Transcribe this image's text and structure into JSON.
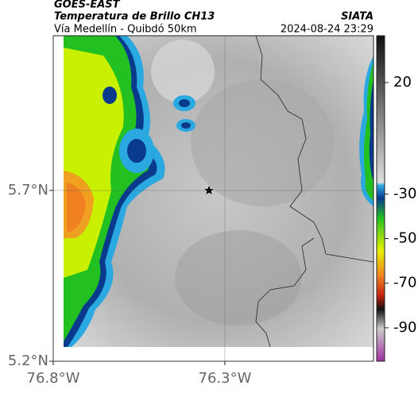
{
  "header": {
    "title": "GOES-EAST",
    "subtitle": "Temperatura de Brillo CH13",
    "route": "Vía Medellín - Quibdó 50km",
    "source": "SIATA",
    "timestamp": "2024-08-24 23:29"
  },
  "map": {
    "xlim": [
      -76.8,
      -75.867
    ],
    "ylim": [
      5.2,
      6.153
    ],
    "xticks": [
      {
        "value": -76.8,
        "label": "76.8°W"
      },
      {
        "value": -76.3,
        "label": "76.3°W"
      }
    ],
    "yticks": [
      {
        "value": 5.7,
        "label": "5.7°N"
      },
      {
        "value": 5.2,
        "label": "5.2°N"
      }
    ],
    "grid": true
  },
  "colorbar": {
    "lim": [
      41,
      -105
    ],
    "ticks": [
      20,
      -30,
      -50,
      -70,
      -90
    ]
  }
}
